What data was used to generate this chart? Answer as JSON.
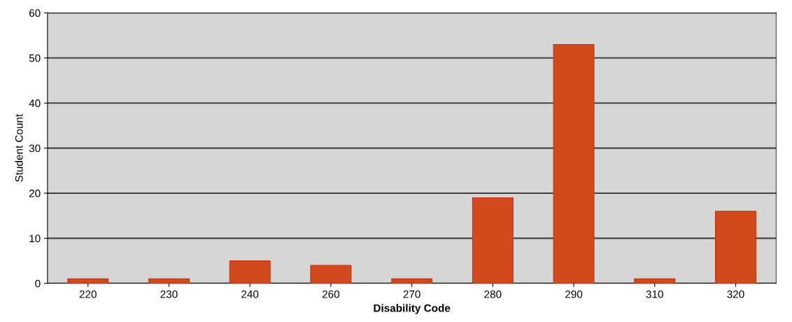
{
  "chart_data": {
    "type": "bar",
    "xlabel": "Disability Code",
    "ylabel": "Student Count",
    "categories": [
      "220",
      "230",
      "240",
      "260",
      "270",
      "280",
      "290",
      "310",
      "320"
    ],
    "values": [
      1,
      1,
      5,
      4,
      1,
      19,
      53,
      1,
      16
    ],
    "color": "#d2491d",
    "ylim": [
      0,
      60
    ],
    "yticks": [
      0,
      10,
      20,
      30,
      40,
      50,
      60
    ],
    "grid": "y"
  }
}
